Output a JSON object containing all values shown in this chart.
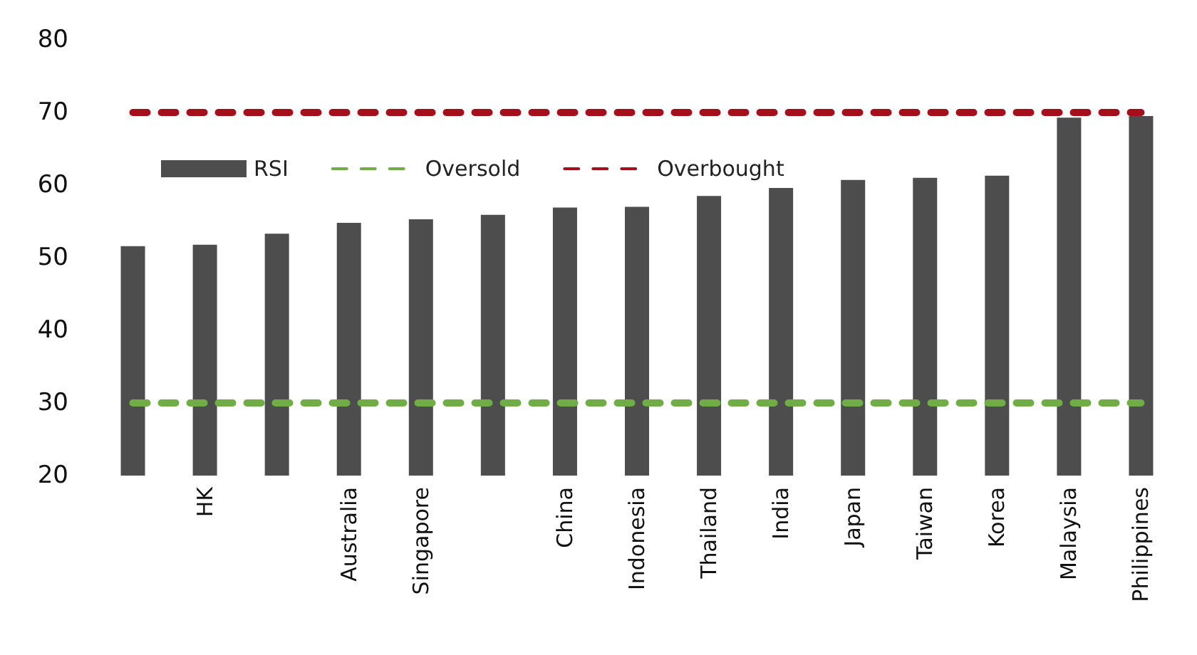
{
  "chart_data": {
    "type": "bar",
    "categories": [
      null,
      "HK",
      null,
      "Australia",
      "Singapore",
      null,
      "China",
      "Indonesia",
      "Thailand",
      "India",
      "Japan",
      "Taiwan",
      "Korea",
      "Malaysia",
      "Philippines"
    ],
    "series": [
      {
        "name": "RSI",
        "color": "#4d4d4d",
        "values": [
          51.6,
          51.8,
          53.3,
          54.8,
          55.3,
          55.9,
          56.9,
          57.0,
          58.5,
          59.6,
          60.7,
          61.0,
          61.3,
          69.3,
          69.5
        ]
      },
      {
        "name": "Oversold",
        "type": "line",
        "color": "#70ad47",
        "line_style": "dashed",
        "values": [
          30,
          30,
          30,
          30,
          30,
          30,
          30,
          30,
          30,
          30,
          30,
          30,
          30,
          30,
          30
        ]
      },
      {
        "name": "Overbought",
        "type": "line",
        "color": "#a50f1c",
        "line_style": "dashed",
        "values": [
          70,
          70,
          70,
          70,
          70,
          70,
          70,
          70,
          70,
          70,
          70,
          70,
          70,
          70,
          70
        ]
      }
    ],
    "ylim": [
      20,
      80
    ],
    "yticks": [
      20,
      30,
      40,
      50,
      60,
      70,
      80
    ],
    "grid": false,
    "legend": "top",
    "marker": "none"
  }
}
